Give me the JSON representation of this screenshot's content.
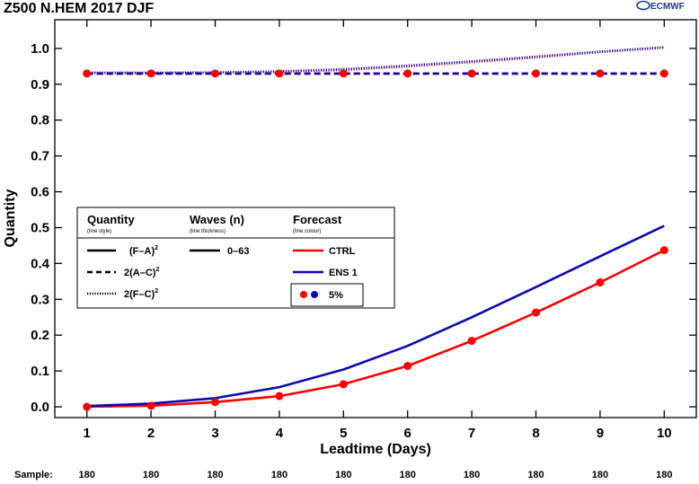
{
  "header": {
    "title": "Z500 N.HEM 2017 DJF",
    "logo_text": "ECMWF"
  },
  "legend": {
    "quantity_header": "Quantity",
    "quantity_sub": "(line style)",
    "waves_header": "Waves (n)",
    "waves_sub": "(line thickness)",
    "forecast_header": "Forecast",
    "forecast_sub": "(line colour)",
    "quantities": [
      {
        "label": "(F–A)",
        "sup": "2",
        "style": "solid"
      },
      {
        "label": "2(A–C)",
        "sup": "2",
        "style": "dashed"
      },
      {
        "label": "2(F–C)",
        "sup": "2",
        "style": "dotted"
      }
    ],
    "waves_item": "0–63",
    "forecasts": [
      {
        "label": "CTRL",
        "color": "#ff0000"
      },
      {
        "label": "ENS 1",
        "color": "#0a0ab4"
      }
    ],
    "marker_label": "5%"
  },
  "sample": {
    "label": "Sample:",
    "values": [
      "180",
      "180",
      "180",
      "180",
      "180",
      "180",
      "180",
      "180",
      "180",
      "180"
    ]
  },
  "chart_data": {
    "type": "line",
    "title": "Z500 N.HEM 2017 DJF",
    "xlabel": "Leadtime (Days)",
    "ylabel": "Quantity",
    "x": [
      1,
      2,
      3,
      4,
      5,
      6,
      7,
      8,
      9,
      10
    ],
    "xlim": [
      0.5,
      10.5
    ],
    "ylim": [
      -0.03,
      1.08
    ],
    "x_ticks": [
      "1",
      "2",
      "3",
      "4",
      "5",
      "6",
      "7",
      "8",
      "9",
      "10"
    ],
    "y_ticks": [
      "0.0",
      "0.1",
      "0.2",
      "0.3",
      "0.4",
      "0.5",
      "0.6",
      "0.7",
      "0.8",
      "0.9",
      "1.0"
    ],
    "grid": false,
    "legend_position": "center-left",
    "series": [
      {
        "name": "CTRL",
        "quantity": "(F–A)²",
        "color": "#ff0000",
        "style": "solid",
        "markers": true,
        "values": [
          0.0,
          0.003,
          0.013,
          0.03,
          0.063,
          0.114,
          0.184,
          0.263,
          0.347,
          0.437
        ]
      },
      {
        "name": "ENS 1",
        "quantity": "(F–A)²",
        "color": "#0a0ab4",
        "style": "solid",
        "markers": false,
        "values": [
          0.002,
          0.009,
          0.024,
          0.055,
          0.104,
          0.17,
          0.25,
          0.334,
          0.42,
          0.505
        ]
      },
      {
        "name": "CTRL",
        "quantity": "2(A–C)²",
        "color": "#ff0000",
        "style": "dashed",
        "markers": true,
        "values": [
          0.93,
          0.93,
          0.93,
          0.93,
          0.93,
          0.93,
          0.93,
          0.93,
          0.93,
          0.93
        ]
      },
      {
        "name": "ENS 1",
        "quantity": "2(A–C)²",
        "color": "#0a0ab4",
        "style": "dashed",
        "markers": false,
        "values": [
          0.93,
          0.93,
          0.93,
          0.93,
          0.93,
          0.93,
          0.93,
          0.93,
          0.93,
          0.93
        ]
      },
      {
        "name": "CTRL",
        "quantity": "2(F–C)²",
        "color": "#ff0000",
        "style": "dotted",
        "markers": false,
        "values": [
          0.932,
          0.932,
          0.933,
          0.935,
          0.94,
          0.95,
          0.962,
          0.975,
          0.99,
          1.002
        ]
      },
      {
        "name": "ENS 1",
        "quantity": "2(F–C)²",
        "color": "#0a0ab4",
        "style": "dotted",
        "markers": false,
        "values": [
          0.932,
          0.932,
          0.933,
          0.936,
          0.942,
          0.952,
          0.964,
          0.977,
          0.991,
          1.003
        ]
      }
    ]
  }
}
